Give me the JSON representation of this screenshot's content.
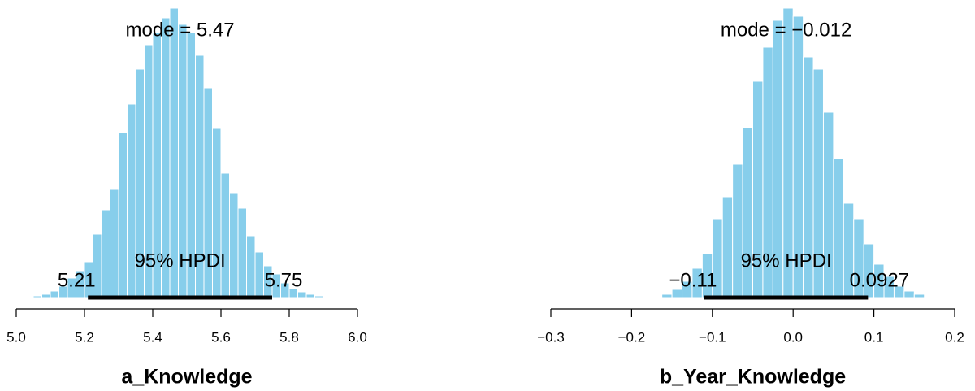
{
  "chart_data": [
    {
      "type": "histogram",
      "xlabel": "a_Knowledge",
      "color": "#87ceeb",
      "bins": [
        5.05,
        5.075,
        5.1,
        5.125,
        5.15,
        5.175,
        5.2,
        5.225,
        5.25,
        5.275,
        5.3,
        5.325,
        5.35,
        5.375,
        5.4,
        5.425,
        5.45,
        5.475,
        5.5,
        5.525,
        5.55,
        5.575,
        5.6,
        5.625,
        5.65,
        5.675,
        5.7,
        5.725,
        5.75,
        5.775,
        5.8,
        5.825,
        5.85,
        5.875,
        5.9,
        5.925,
        5.95
      ],
      "values": [
        2,
        4,
        8,
        14,
        24,
        33,
        44,
        78,
        108,
        133,
        203,
        238,
        281,
        311,
        326,
        344,
        356,
        336,
        326,
        298,
        258,
        208,
        153,
        128,
        110,
        76,
        56,
        39,
        29,
        18,
        11,
        7,
        4,
        2,
        1,
        1
      ],
      "xlim": [
        5.0,
        6.0
      ],
      "xticks": [
        {
          "value": 5.0,
          "label": "5.0"
        },
        5.2,
        5.4,
        5.6,
        5.8,
        {
          "value": 6.0,
          "label": "6.0"
        }
      ],
      "mode_label": "mode = 5.47",
      "hpdi_label": "95% HPDI",
      "hpdi": [
        5.21,
        5.75
      ]
    },
    {
      "type": "histogram",
      "xlabel": "b_Year_Knowledge",
      "color": "#87ceeb",
      "bins": [
        -0.175,
        -0.1625,
        -0.15,
        -0.1375,
        -0.125,
        -0.1125,
        -0.1,
        -0.0875,
        -0.075,
        -0.0625,
        -0.05,
        -0.0375,
        -0.025,
        -0.0125,
        0,
        0.0125,
        0.025,
        0.0375,
        0.05,
        0.0625,
        0.075,
        0.0875,
        0.1,
        0.1125,
        0.125,
        0.1375,
        0.15,
        0.1625
      ],
      "values": [
        1,
        4,
        10,
        20,
        36,
        54,
        96,
        124,
        164,
        209,
        266,
        308,
        341,
        356,
        346,
        296,
        281,
        228,
        171,
        116,
        96,
        66,
        41,
        26,
        14,
        8,
        4
      ],
      "xlim": [
        -0.3,
        0.2
      ],
      "xticks": [
        {
          "value": -0.3,
          "label": "−0.3"
        },
        {
          "value": -0.2,
          "label": "−0.2"
        },
        {
          "value": -0.1,
          "label": "−0.1"
        },
        {
          "value": 0,
          "label": "0.0"
        },
        0.1,
        0.2
      ],
      "mode_label": "mode = −0.012",
      "hpdi_label": "95% HPDI",
      "hpdi": [
        -0.11,
        0.0927
      ],
      "hpdi_value_labels": [
        "−0.11",
        "0.0927"
      ]
    }
  ]
}
